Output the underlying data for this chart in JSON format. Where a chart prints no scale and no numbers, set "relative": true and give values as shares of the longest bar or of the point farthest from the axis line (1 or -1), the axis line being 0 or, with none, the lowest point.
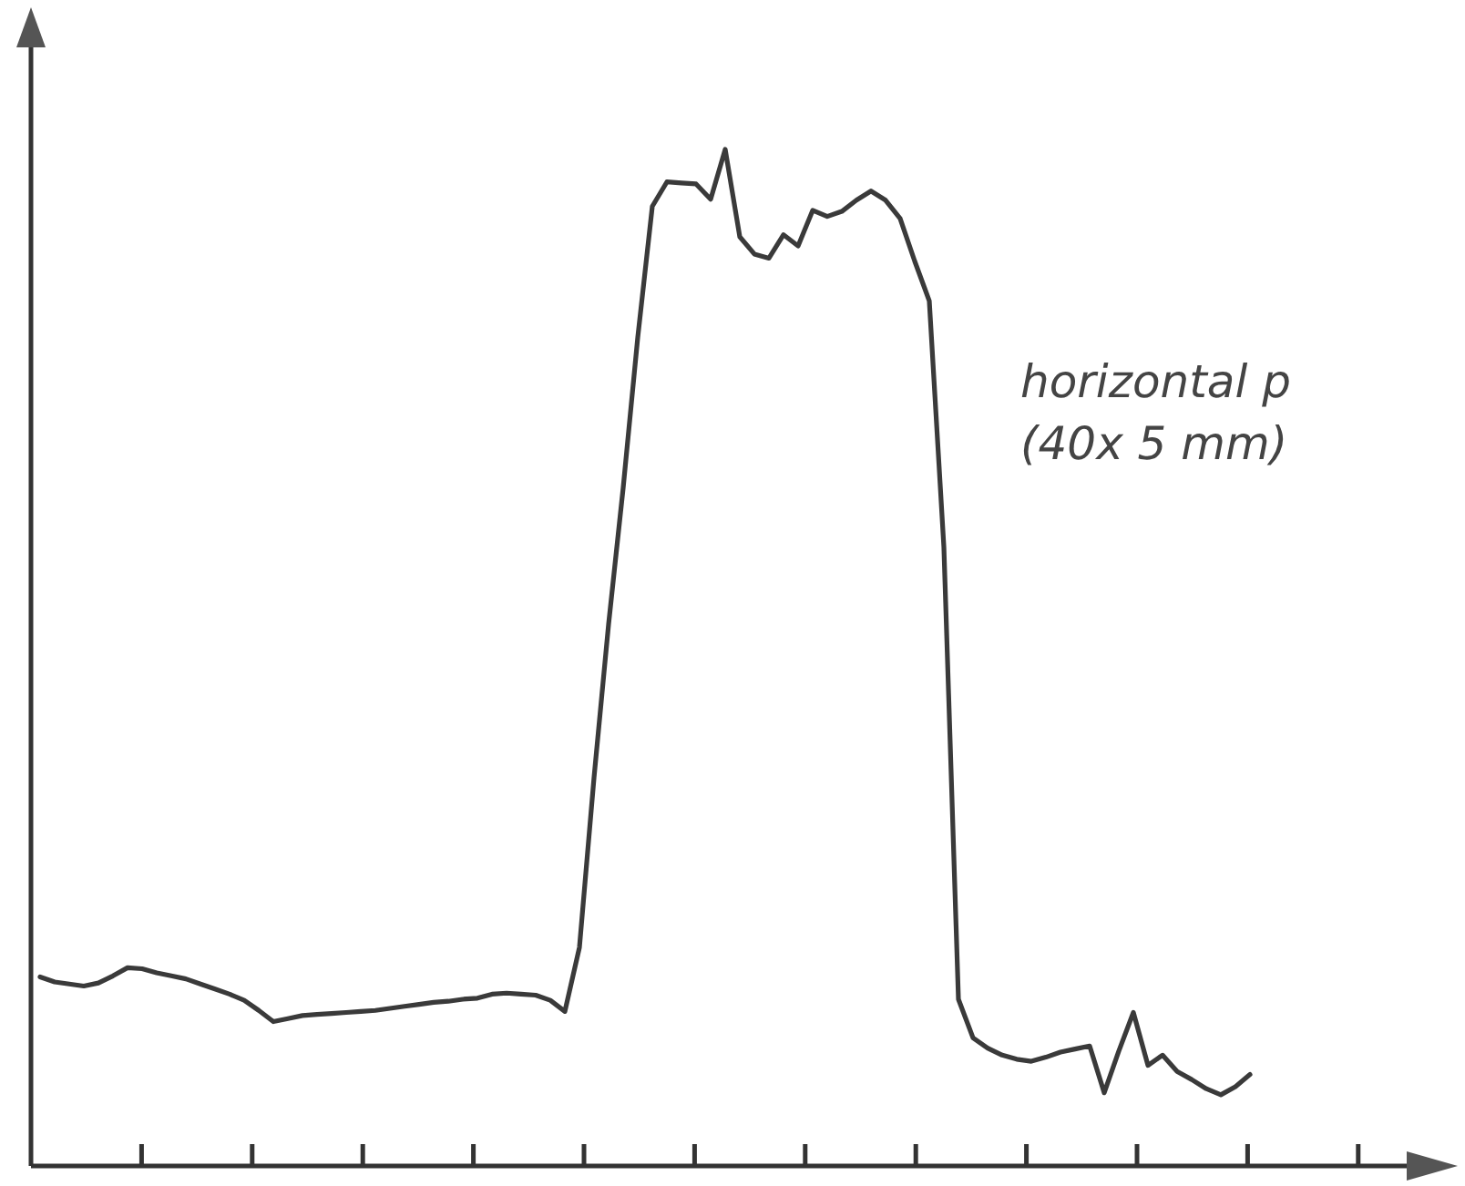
{
  "chart_data": {
    "type": "line",
    "relative": true,
    "annotations": [
      "horizontal p",
      "(40x 5 mm)"
    ],
    "categories": [
      null,
      null,
      null,
      null,
      null,
      null,
      null,
      null,
      null,
      null,
      null,
      null,
      null,
      null,
      null,
      null,
      null,
      null,
      null,
      null,
      null,
      null,
      null,
      null,
      null,
      null,
      null,
      null,
      null,
      null,
      null,
      null,
      null,
      null,
      null,
      null,
      null,
      null,
      null,
      null,
      null,
      null,
      null,
      null,
      null,
      null,
      null,
      null,
      null,
      null,
      null,
      null,
      null,
      null,
      null,
      null,
      null,
      null,
      null,
      null,
      null,
      null,
      null,
      null,
      null,
      null,
      null,
      null,
      null,
      null,
      null,
      null,
      null,
      null,
      null,
      null,
      null,
      null,
      null,
      null,
      null,
      null,
      null,
      null
    ],
    "series": [
      {
        "color": "#3a3a3a",
        "values": [
          0.186,
          0.181,
          0.179,
          0.177,
          0.18,
          0.187,
          0.195,
          0.194,
          0.19,
          0.187,
          0.184,
          0.179,
          0.174,
          0.169,
          0.163,
          0.153,
          0.142,
          0.145,
          0.148,
          0.149,
          0.15,
          0.151,
          0.152,
          0.153,
          0.155,
          0.157,
          0.159,
          0.161,
          0.162,
          0.164,
          0.165,
          0.169,
          0.17,
          0.169,
          0.168,
          0.163,
          0.152,
          0.215,
          0.382,
          0.533,
          0.667,
          0.815,
          0.944,
          0.968,
          0.967,
          0.966,
          0.951,
          1.0,
          0.914,
          0.897,
          0.893,
          0.916,
          0.905,
          0.94,
          0.934,
          0.939,
          0.95,
          0.959,
          0.95,
          0.932,
          0.89,
          0.851,
          0.609,
          0.164,
          0.126,
          0.116,
          0.109,
          0.105,
          0.103,
          0.107,
          0.112,
          0.115,
          0.118,
          0.072,
          0.113,
          0.151,
          0.099,
          0.109,
          0.093,
          0.085,
          0.076,
          0.07,
          0.078,
          0.09
        ]
      }
    ]
  }
}
